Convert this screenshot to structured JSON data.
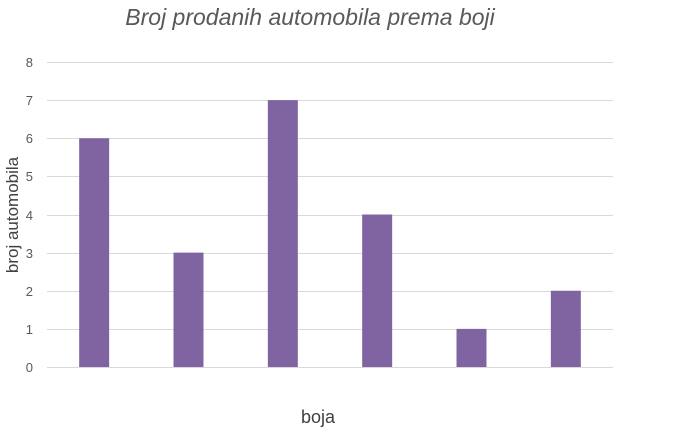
{
  "chart_data": {
    "type": "bar",
    "title": "Broj prodanih automobila prema boji",
    "xlabel": "boja",
    "ylabel": "broj automobila",
    "categories": [
      "",
      "",
      "",
      "",
      "",
      ""
    ],
    "values": [
      6,
      3,
      7,
      4,
      1,
      2
    ],
    "ylim": [
      0,
      8
    ],
    "yticks": [
      0,
      1,
      2,
      3,
      4,
      5,
      6,
      7,
      8
    ],
    "grid": true,
    "legend": "none",
    "bar_color": "#8064a2",
    "grid_color": "#d9d9d9"
  }
}
